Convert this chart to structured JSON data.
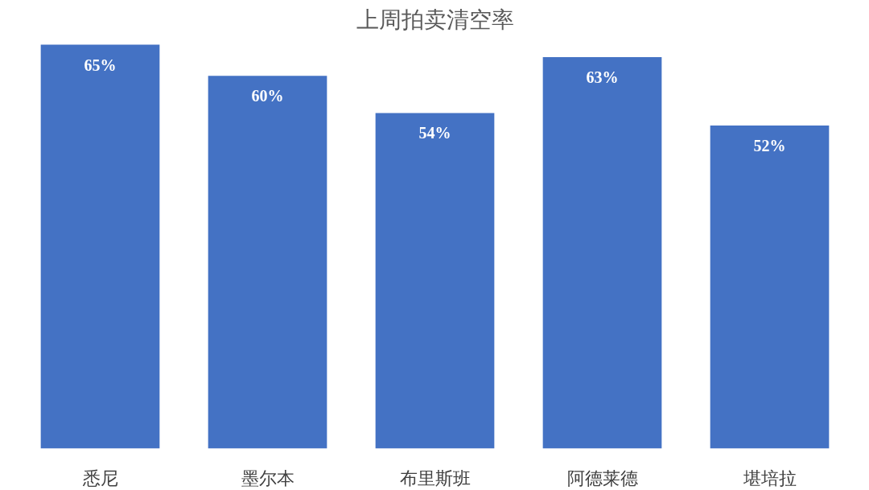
{
  "chart_data": {
    "type": "bar",
    "title": "上周拍卖清空率",
    "categories": [
      "悉尼",
      "墨尔本",
      "布里斯班",
      "阿德莱德",
      "堪培拉"
    ],
    "values": [
      65,
      60,
      54,
      63,
      52
    ],
    "value_labels": [
      "65%",
      "60%",
      "54%",
      "63%",
      "52%"
    ],
    "color": "#4472c4",
    "grid": false
  }
}
